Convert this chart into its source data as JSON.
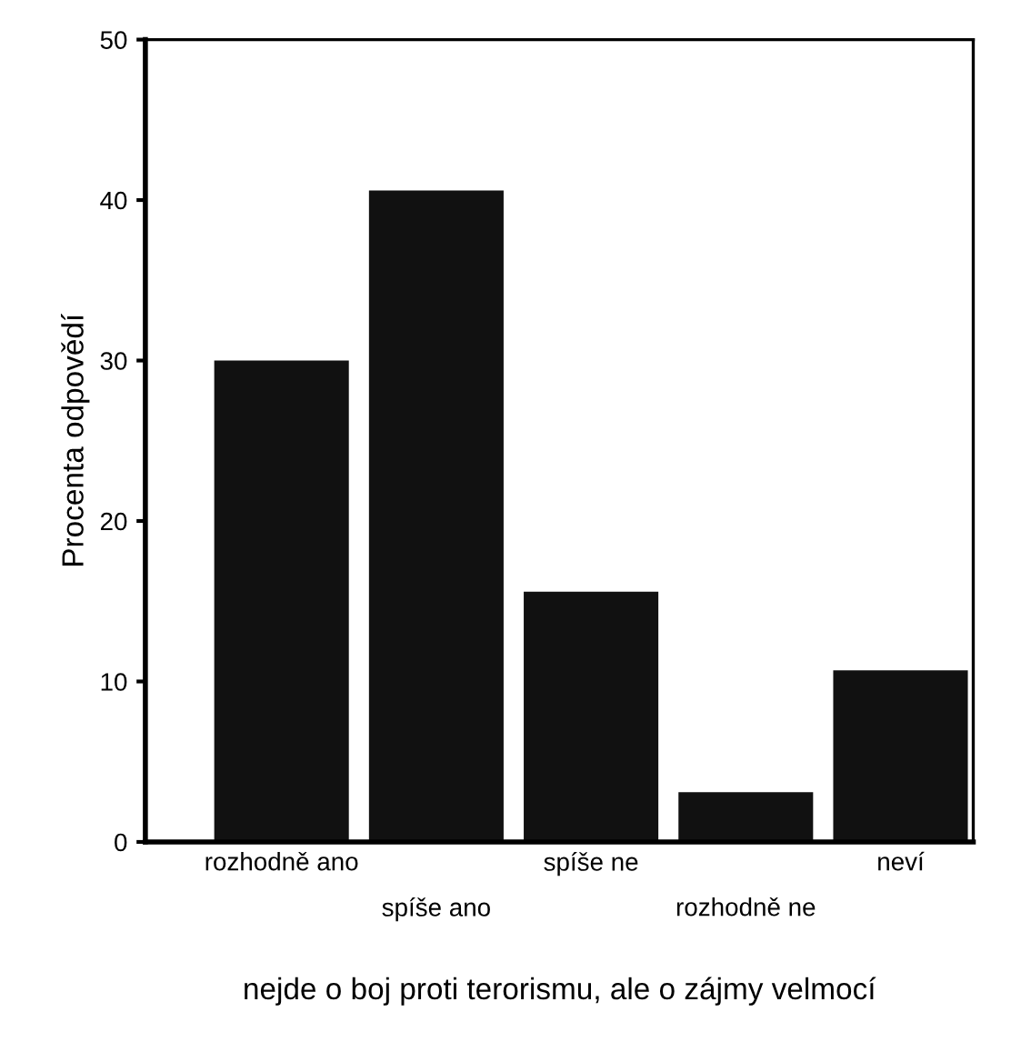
{
  "chart_data": {
    "type": "bar",
    "categories": [
      "rozhodně ano",
      "spíše ano",
      "spíše ne",
      "rozhodně ne",
      "neví"
    ],
    "values": [
      30.0,
      40.6,
      15.6,
      3.1,
      10.7
    ],
    "color": "#111111",
    "ylabel": "Procenta odpovědí",
    "xlabel": "nejde o boj proti terorismu, ale o zájmy velmocí",
    "ylim": [
      0,
      50
    ],
    "yticks": [
      0,
      10,
      20,
      30,
      40,
      50
    ],
    "grid": false,
    "legend": false
  }
}
